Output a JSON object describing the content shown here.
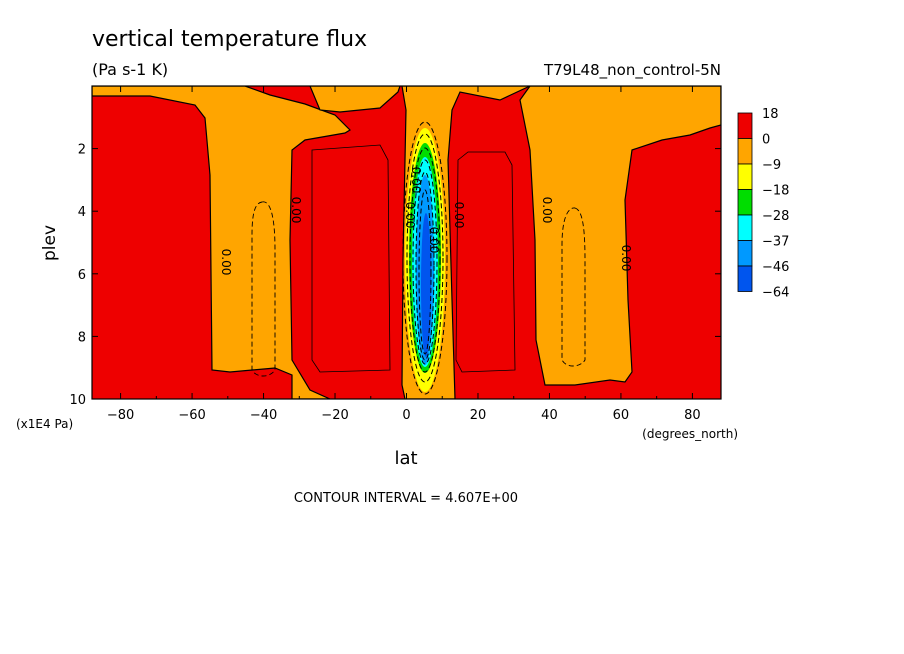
{
  "chart_data": {
    "type": "heatmap",
    "title": "vertical temperature flux",
    "units": "(Pa s-1 K)",
    "dataset": "T79L48_non_control-5N",
    "xlabel": "lat",
    "xunits": "(degrees_north)",
    "ylabel": "plev",
    "yunits": "(x1E4 Pa)",
    "xlim": [
      -88,
      88
    ],
    "ylim": [
      10,
      0
    ],
    "xticks": [
      -80,
      -60,
      -40,
      -20,
      0,
      20,
      40,
      60,
      80
    ],
    "xtick_labels": [
      "-80",
      "-60",
      "-40",
      "-20",
      "0",
      "20",
      "40",
      "60",
      "80"
    ],
    "yticks": [
      2,
      4,
      6,
      8,
      10
    ],
    "ytick_labels": [
      "2",
      "4",
      "6",
      "8",
      "10"
    ],
    "contour_interval_text": "CONTOUR INTERVAL = 4.607E+00",
    "contour_labels": [
      "0.00",
      "0.00",
      "0.00",
      "0.00",
      "0.00",
      "0.00",
      "0.00",
      "0.00"
    ],
    "colorbar": {
      "labels": [
        "18",
        "0",
        "-9",
        "-18",
        "-28",
        "-37",
        "-46",
        "-64"
      ],
      "colors": [
        "#ee0000",
        "#ffa500",
        "#ffff00",
        "#00dd00",
        "#00ffff",
        "#0099ff",
        "#0055ee"
      ]
    },
    "regions": [
      {
        "level": "positive",
        "color": "#ee0000",
        "lat": [
          -88,
          -55
        ],
        "plev": [
          0.2,
          10
        ]
      },
      {
        "level": "negative-weak",
        "color": "#ffa500",
        "lat": [
          -55,
          -28
        ],
        "plev": [
          0.2,
          10
        ]
      },
      {
        "level": "positive",
        "color": "#ee0000",
        "lat": [
          -28,
          0
        ],
        "plev": [
          0.3,
          10
        ]
      },
      {
        "level": "negative-strong",
        "color": "#0055ee",
        "lat": [
          2,
          8
        ],
        "plev": [
          2,
          9.5
        ]
      },
      {
        "level": "positive",
        "color": "#ee0000",
        "lat": [
          12,
          38
        ],
        "plev": [
          0.3,
          10
        ]
      },
      {
        "level": "negative-weak",
        "color": "#ffa500",
        "lat": [
          38,
          62
        ],
        "plev": [
          0.2,
          10
        ]
      },
      {
        "level": "positive",
        "color": "#ee0000",
        "lat": [
          62,
          88
        ],
        "plev": [
          0.2,
          10
        ]
      }
    ]
  }
}
